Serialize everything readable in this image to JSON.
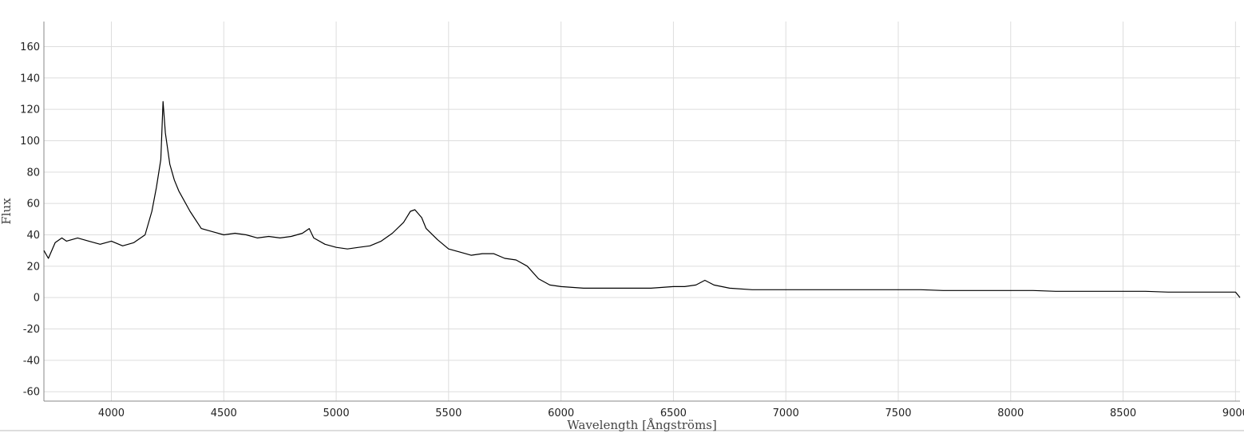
{
  "chart_data": {
    "type": "line",
    "title": "",
    "xlabel": "Wavelength [Ångströms]",
    "ylabel": "Flux",
    "xlim": [
      3700,
      9020
    ],
    "ylim": [
      -66,
      176
    ],
    "x_ticks": [
      4000,
      4500,
      5000,
      5500,
      6000,
      6500,
      7000,
      7500,
      8000,
      8500,
      9000
    ],
    "y_ticks": [
      -60,
      -40,
      -20,
      0,
      20,
      40,
      60,
      80,
      100,
      120,
      140,
      160
    ],
    "grid": true,
    "legend": "none",
    "colors": {
      "line": "#000000",
      "grid": "#dddddd",
      "axis": "#888888"
    },
    "series": [
      {
        "x": [
          3700,
          3720,
          3750,
          3780,
          3800,
          3850,
          3900,
          3950,
          4000,
          4050,
          4100,
          4150,
          4180,
          4200,
          4220,
          4230,
          4240,
          4260,
          4280,
          4300,
          4350,
          4400,
          4450,
          4500,
          4550,
          4600,
          4650,
          4700,
          4750,
          4800,
          4850,
          4880,
          4900,
          4950,
          5000,
          5050,
          5100,
          5150,
          5200,
          5250,
          5300,
          5330,
          5350,
          5380,
          5400,
          5450,
          5500,
          5550,
          5575,
          5600,
          5650,
          5700,
          5750,
          5800,
          5850,
          5900,
          5950,
          6000,
          6100,
          6200,
          6300,
          6400,
          6500,
          6550,
          6600,
          6640,
          6680,
          6750,
          6850,
          6900,
          7000,
          7100,
          7200,
          7300,
          7400,
          7500,
          7600,
          7700,
          7800,
          7900,
          8000,
          8100,
          8200,
          8300,
          8400,
          8500,
          8600,
          8700,
          8800,
          8900,
          9000,
          9020
        ],
        "y": [
          30,
          25,
          35,
          38,
          36,
          38,
          36,
          34,
          36,
          33,
          35,
          40,
          55,
          70,
          88,
          125,
          105,
          85,
          75,
          68,
          55,
          44,
          42,
          40,
          41,
          40,
          38,
          39,
          38,
          39,
          41,
          44,
          38,
          34,
          32,
          31,
          32,
          33,
          36,
          41,
          48,
          55,
          56,
          51,
          44,
          37,
          31,
          29,
          28,
          27,
          28,
          28,
          25,
          24,
          20,
          12,
          8,
          7,
          6,
          6,
          6,
          6,
          7,
          7,
          8,
          11,
          8,
          6,
          5,
          5,
          5,
          5,
          5,
          5,
          5,
          5,
          5,
          4.5,
          4.5,
          4.5,
          4.5,
          4.5,
          4,
          4,
          4,
          4,
          4,
          3.5,
          3.5,
          3.5,
          3.5,
          0
        ]
      }
    ]
  }
}
